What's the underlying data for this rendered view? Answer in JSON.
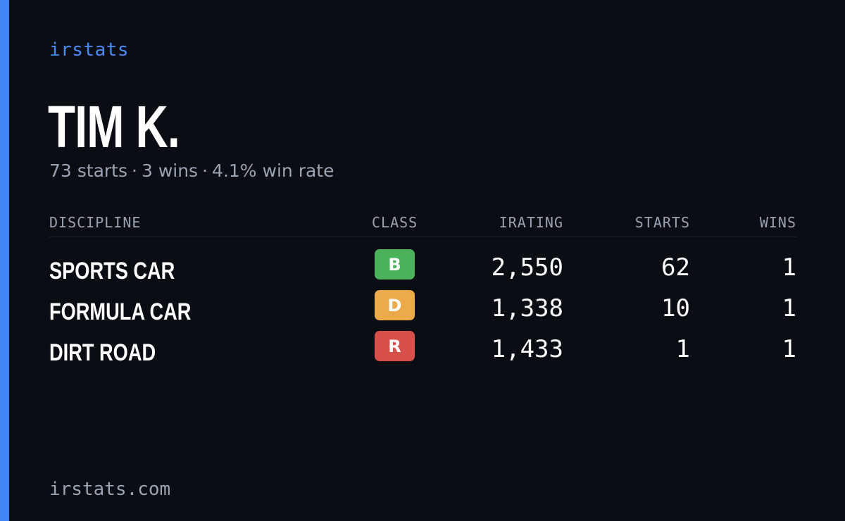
{
  "brand": "irstats",
  "player": {
    "name": "TIM K.",
    "starts_text": "73 starts",
    "wins_text": "3 wins",
    "win_rate_text": "4.1% win rate",
    "separator": "·"
  },
  "table": {
    "headers": {
      "discipline": "DISCIPLINE",
      "class": "CLASS",
      "irating": "IRATING",
      "starts": "STARTS",
      "wins": "WINS"
    },
    "rows": [
      {
        "discipline": "SPORTS CAR",
        "class": "B",
        "class_color": "#4cb25a",
        "irating": "2,550",
        "starts": "62",
        "wins": "1"
      },
      {
        "discipline": "FORMULA CAR",
        "class": "D",
        "class_color": "#ecaa4a",
        "irating": "1,338",
        "starts": "10",
        "wins": "1"
      },
      {
        "discipline": "DIRT ROAD",
        "class": "R",
        "class_color": "#d7504c",
        "irating": "1,433",
        "starts": "1",
        "wins": "1"
      }
    ]
  },
  "footer": "irstats.com",
  "colors": {
    "background": "#0a0d14",
    "accent": "#4285f4"
  }
}
